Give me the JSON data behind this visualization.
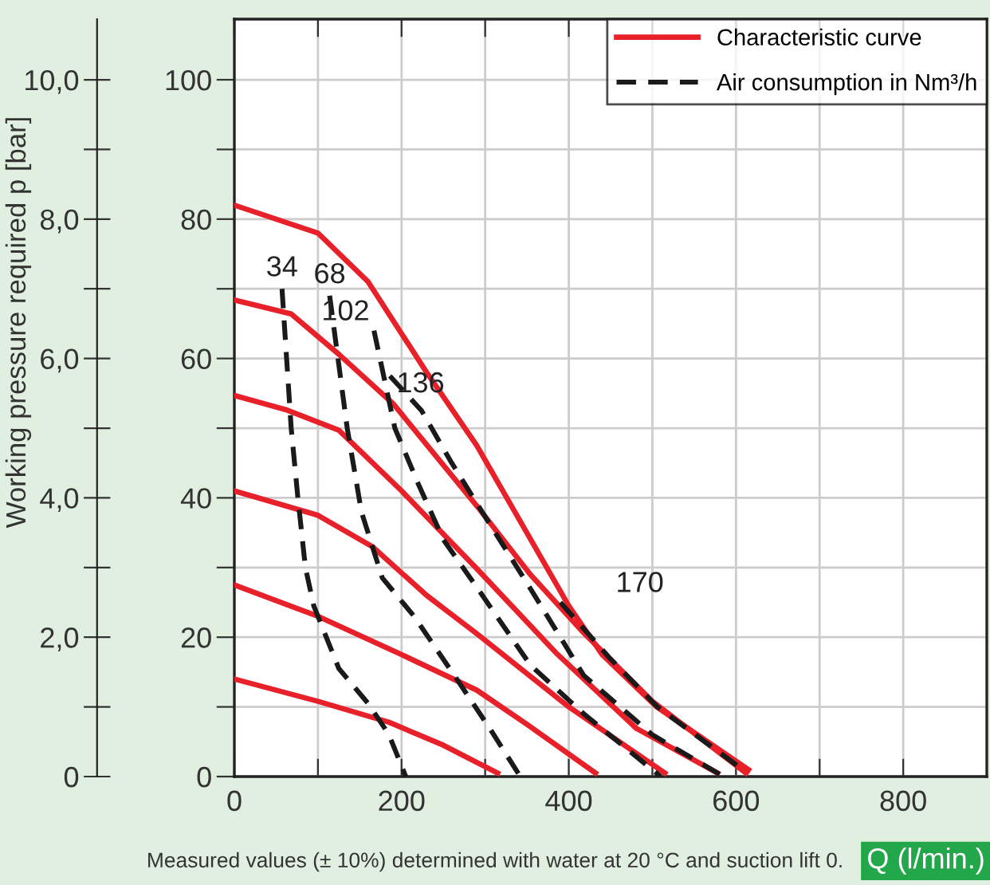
{
  "chart_data": {
    "type": "line",
    "y2label": "Working pressure required p [bar]",
    "xlabel": "Q (l/min.)",
    "xlim": [
      0,
      900
    ],
    "xticks": [
      0,
      {
        "value": 100,
        "label": null
      },
      200,
      {
        "value": 300,
        "label": null
      },
      400,
      {
        "value": 500,
        "label": null
      },
      600,
      {
        "value": 700,
        "label": null
      },
      800
    ],
    "ylim": [
      0,
      108.7
    ],
    "yticks": [
      0,
      {
        "value": 10,
        "label": null
      },
      20,
      {
        "value": 30,
        "label": null
      },
      40,
      {
        "value": 50,
        "label": null
      },
      60,
      {
        "value": 70,
        "label": null
      },
      80,
      {
        "value": 90,
        "label": null
      },
      100
    ],
    "y2lim": [
      0,
      10.87
    ],
    "y2ticks": [
      0,
      {
        "value": 1,
        "label": null
      },
      {
        "value": 2,
        "label": "2,0"
      },
      {
        "value": 3,
        "label": null
      },
      {
        "value": 4,
        "label": "4,0"
      },
      {
        "value": 5,
        "label": null
      },
      {
        "value": 6,
        "label": "6,0"
      },
      {
        "value": 7,
        "label": null
      },
      {
        "value": 8,
        "label": "8,0"
      },
      {
        "value": 9,
        "label": null
      },
      {
        "value": 10,
        "label": "10,0"
      }
    ],
    "grid": true,
    "legend": "top right",
    "marker": "none",
    "series": [
      {
        "name": "Characteristic curve",
        "color": "#e8202a",
        "line_style": "solid",
        "x": [
          0,
          100,
          160,
          230,
          290,
          400,
          440,
          505,
          615
        ],
        "values": [
          82,
          78,
          71,
          58,
          47.5,
          24.5,
          17.5,
          10,
          1
        ]
      },
      {
        "color": "#e8202a",
        "line_style": "solid",
        "x": [
          0,
          68,
          125,
          190,
          291,
          354,
          418,
          500,
          612
        ],
        "values": [
          68.4,
          66.4,
          60.6,
          53.5,
          38.7,
          29,
          20.6,
          10.8,
          0.5
        ]
      },
      {
        "color": "#e8202a",
        "line_style": "solid",
        "x": [
          0,
          63,
          125,
          200,
          291,
          386,
          481,
          578
        ],
        "values": [
          54.7,
          52.6,
          49.7,
          41,
          29.7,
          17.6,
          6.9,
          0.5
        ]
      },
      {
        "color": "#e8202a",
        "line_style": "solid",
        "x": [
          0,
          100,
          165,
          230,
          291,
          400,
          515
        ],
        "values": [
          41,
          37.5,
          33,
          26,
          20.4,
          10,
          0.5
        ]
      },
      {
        "color": "#e8202a",
        "line_style": "solid",
        "x": [
          0,
          100,
          200,
          290,
          350,
          432
        ],
        "values": [
          27.5,
          23,
          17.5,
          12.4,
          7.5,
          0.5
        ]
      },
      {
        "color": "#e8202a",
        "line_style": "solid",
        "x": [
          0,
          100,
          185,
          250,
          315
        ],
        "values": [
          14,
          10.8,
          7.8,
          4.5,
          0.5
        ]
      },
      {
        "name": "Air consumption in Nm³/h",
        "color": "#1a1a1a",
        "line_style": "dashed",
        "x": [
          57,
          68,
          76,
          85,
          95,
          125,
          160,
          185,
          205
        ],
        "values": [
          70,
          50,
          40,
          30,
          24.5,
          15.5,
          10.5,
          6,
          0
        ]
      },
      {
        "color": "#1a1a1a",
        "line_style": "dashed",
        "x": [
          114,
          135,
          152,
          177,
          215,
          266,
          305,
          342
        ],
        "values": [
          69,
          50,
          38,
          28.5,
          23,
          14,
          7,
          0
        ]
      },
      {
        "color": "#1a1a1a",
        "line_style": "dashed",
        "x": [
          167,
          192,
          220,
          250,
          291,
          354,
          418,
          510
        ],
        "values": [
          64,
          50,
          42,
          34,
          27,
          16,
          9,
          0
        ]
      },
      {
        "color": "#1a1a1a",
        "line_style": "dashed",
        "x": [
          186,
          224,
          260,
          291,
          354,
          418,
          500,
          585
        ],
        "values": [
          57.5,
          52.5,
          45,
          39,
          27,
          14.5,
          6,
          0
        ]
      },
      {
        "color": "#1a1a1a",
        "line_style": "dashed",
        "x": [
          390,
          449,
          506,
          608
        ],
        "values": [
          25,
          17,
          10,
          1
        ]
      }
    ],
    "annotations": [
      "34",
      "68",
      "102",
      "136",
      "170",
      "Measured values (± 10%) determined with water at 20 °C and suction lift 0."
    ]
  }
}
